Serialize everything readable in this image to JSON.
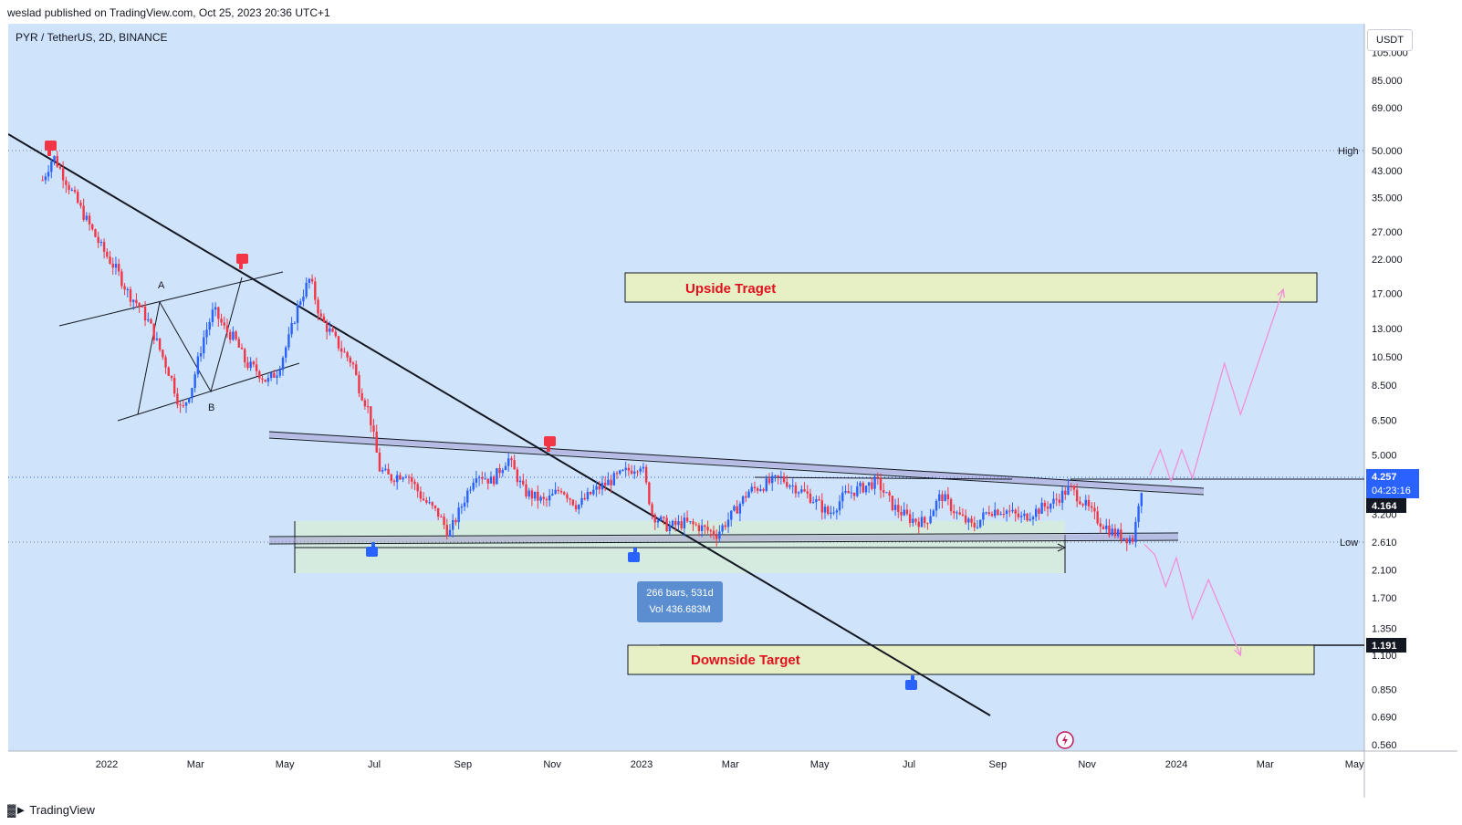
{
  "header": {
    "publisher_text": "weslad published on TradingView.com, Oct 25, 2023 20:36 UTC+1"
  },
  "footer": {
    "brand": "TradingView"
  },
  "toolbar": {
    "currency": "USDT"
  },
  "colors": {
    "background": "#cfe3fb",
    "up_candle": "#2962ff",
    "down_candle": "#f23645",
    "target_box": "#e6f0c4",
    "range_box": "#d6ebdc",
    "projection": "#f28fd8",
    "label_blue": "#2962ff",
    "label_black": "#131722"
  },
  "chart_data": {
    "type": "candlestick",
    "title": "PYR / TetherUS, 2D, BINANCE",
    "symbol": "PYR / TetherUS",
    "interval": "2D",
    "exchange": "BINANCE",
    "scale": "log",
    "y_ticks": [
      "0.560",
      "0.690",
      "0.850",
      "1.100",
      "1.350",
      "1.700",
      "2.100",
      "2.610",
      "3.200",
      "4.164",
      "4.257",
      "5.000",
      "6.500",
      "8.500",
      "10.500",
      "13.000",
      "17.000",
      "22.000",
      "27.000",
      "35.000",
      "43.000",
      "50.000",
      "69.000",
      "85.000",
      "105.000"
    ],
    "x_ticks": [
      "2022",
      "Mar",
      "May",
      "Jul",
      "Sep",
      "Nov",
      "2023",
      "Mar",
      "May",
      "Jul",
      "Sep",
      "Nov",
      "2024",
      "Mar",
      "May"
    ],
    "price_labels": {
      "current_price": "4.257",
      "countdown": "04:23:16",
      "prev_close": "4.164",
      "high_label": "High",
      "high_value": "50.000",
      "low_label": "Low",
      "low_value": "2.610",
      "target_line_value": "1.191"
    },
    "annotations": {
      "upside_target": "Upside Traget",
      "downside_target": "Downside Target",
      "point_a": "A",
      "point_b": "B",
      "measure_line1": "266 bars, 531d",
      "measure_line2": "Vol 436.683M"
    },
    "price_path": [
      [
        2021.88,
        40
      ],
      [
        2021.9,
        48
      ],
      [
        2021.93,
        38
      ],
      [
        2021.96,
        30
      ],
      [
        2021.99,
        24
      ],
      [
        2022.02,
        20
      ],
      [
        2022.04,
        17
      ],
      [
        2022.06,
        15.5
      ],
      [
        2022.08,
        13.5
      ],
      [
        2022.1,
        11
      ],
      [
        2022.12,
        9
      ],
      [
        2022.14,
        6.9
      ],
      [
        2022.16,
        8.5
      ],
      [
        2022.18,
        12
      ],
      [
        2022.2,
        15
      ],
      [
        2022.22,
        13
      ],
      [
        2022.24,
        12
      ],
      [
        2022.26,
        10
      ],
      [
        2022.28,
        9.5
      ],
      [
        2022.3,
        8.7
      ],
      [
        2022.32,
        9.5
      ],
      [
        2022.34,
        12
      ],
      [
        2022.36,
        16
      ],
      [
        2022.38,
        19
      ],
      [
        2022.4,
        14
      ],
      [
        2022.42,
        12.5
      ],
      [
        2022.44,
        11
      ],
      [
        2022.46,
        10
      ],
      [
        2022.47,
        8.5
      ],
      [
        2022.49,
        7
      ],
      [
        2022.51,
        4.5
      ],
      [
        2022.53,
        4.2
      ],
      [
        2022.56,
        4.4
      ],
      [
        2022.59,
        3.6
      ],
      [
        2022.62,
        3.2
      ],
      [
        2022.64,
        2.75
      ],
      [
        2022.66,
        3.3
      ],
      [
        2022.69,
        4.4
      ],
      [
        2022.72,
        4.1
      ],
      [
        2022.75,
        4.9
      ],
      [
        2022.78,
        3.8
      ],
      [
        2022.82,
        3.5
      ],
      [
        2022.85,
        3.9
      ],
      [
        2022.88,
        3.4
      ],
      [
        2022.91,
        3.8
      ],
      [
        2022.94,
        4.1
      ],
      [
        2022.97,
        4.4
      ],
      [
        2023.0,
        4.7
      ],
      [
        2023.02,
        3.2
      ],
      [
        2023.05,
        2.9
      ],
      [
        2023.08,
        3.0
      ],
      [
        2023.11,
        2.9
      ],
      [
        2023.14,
        2.75
      ],
      [
        2023.17,
        3.2
      ],
      [
        2023.2,
        3.8
      ],
      [
        2023.23,
        4.0
      ],
      [
        2023.26,
        4.2
      ],
      [
        2023.29,
        3.9
      ],
      [
        2023.32,
        3.6
      ],
      [
        2023.35,
        3.2
      ],
      [
        2023.38,
        3.7
      ],
      [
        2023.41,
        3.9
      ],
      [
        2023.44,
        4.1
      ],
      [
        2023.47,
        3.4
      ],
      [
        2023.5,
        3.1
      ],
      [
        2023.53,
        3.0
      ],
      [
        2023.56,
        3.7
      ],
      [
        2023.59,
        3.2
      ],
      [
        2023.62,
        2.9
      ],
      [
        2023.65,
        3.3
      ],
      [
        2023.68,
        3.3
      ],
      [
        2023.71,
        3.1
      ],
      [
        2023.74,
        3.3
      ],
      [
        2023.77,
        3.5
      ],
      [
        2023.8,
        3.9
      ],
      [
        2023.82,
        3.6
      ],
      [
        2023.85,
        3.1
      ],
      [
        2023.88,
        2.8
      ],
      [
        2023.9,
        2.7
      ],
      [
        2023.92,
        2.65
      ],
      [
        2023.93,
        3.6
      ],
      [
        2023.94,
        4.26
      ]
    ],
    "projections": {
      "up_path": [
        [
          2023.95,
          4.3
        ],
        [
          2023.97,
          5.2
        ],
        [
          2023.99,
          4.1
        ],
        [
          2024.01,
          5.2
        ],
        [
          2024.03,
          4.2
        ],
        [
          2024.09,
          10
        ],
        [
          2024.12,
          6.8
        ],
        [
          2024.2,
          17.5
        ]
      ],
      "down_path": [
        [
          2023.94,
          2.55
        ],
        [
          2023.96,
          2.35
        ],
        [
          2023.98,
          1.85
        ],
        [
          2024.0,
          2.3
        ],
        [
          2024.03,
          1.45
        ],
        [
          2024.06,
          1.95
        ],
        [
          2024.12,
          1.1
        ]
      ]
    }
  }
}
